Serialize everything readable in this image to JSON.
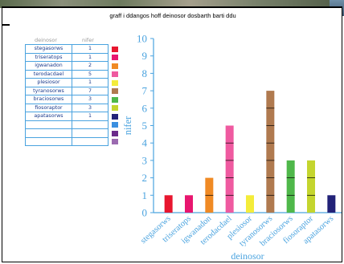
{
  "title": "graff i ddangos hoff deinosor dosbarth barti ddu",
  "table": {
    "headers": [
      "deinosor",
      "nifer"
    ],
    "rows": [
      {
        "name": "stegasorws",
        "count": "1",
        "color": "#e8162f"
      },
      {
        "name": "triseratops",
        "count": "1",
        "color": "#e8166f"
      },
      {
        "name": "igwanadon",
        "count": "2",
        "color": "#f08a24"
      },
      {
        "name": "terodacdael",
        "count": "5",
        "color": "#ef5aa0"
      },
      {
        "name": "plesiosor",
        "count": "1",
        "color": "#f4ec3a"
      },
      {
        "name": "tyranosorws",
        "count": "7",
        "color": "#b07a4f"
      },
      {
        "name": "braciosorws",
        "count": "3",
        "color": "#4fb84a"
      },
      {
        "name": "fiosoraptor",
        "count": "3",
        "color": "#c4d52e"
      },
      {
        "name": "apatasorws",
        "count": "1",
        "color": "#222278"
      },
      {
        "name": "",
        "count": "",
        "color": "#3a8fe0"
      },
      {
        "name": "",
        "count": "",
        "color": "#6a2a8a"
      },
      {
        "name": "",
        "count": "",
        "color": "#9b6ab0"
      }
    ]
  },
  "chart_data": {
    "type": "bar",
    "categories": [
      "stegasorws",
      "triseratops",
      "igwanadon",
      "terodacdael",
      "plesiosor",
      "tyranosorws",
      "braciosorws",
      "fiosoraptor",
      "apatasorws"
    ],
    "values": [
      1,
      1,
      2,
      5,
      1,
      7,
      3,
      3,
      1
    ],
    "colors": [
      "#e8162f",
      "#e8166f",
      "#f08a24",
      "#ef5aa0",
      "#f4ec3a",
      "#b07a4f",
      "#4fb84a",
      "#c4d52e",
      "#222278"
    ],
    "ylim": [
      0,
      10
    ],
    "yticks": [
      0,
      1,
      2,
      3,
      4,
      5,
      6,
      7,
      8,
      9,
      10
    ],
    "xlabel": "deinosor",
    "ylabel": "nifer",
    "grid": false
  }
}
